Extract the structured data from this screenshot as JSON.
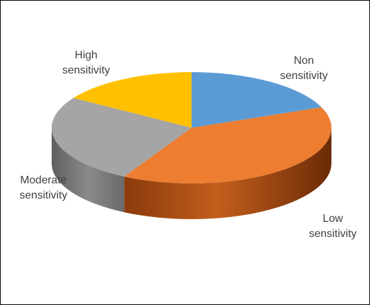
{
  "chart_data": {
    "type": "pie",
    "style": "3d-exploded-none",
    "title": "",
    "legend": "none",
    "start_angle_deg": 0,
    "slices": [
      {
        "label": [
          "Non",
          "sensitivity"
        ],
        "value": 19,
        "color": "#5B9BD5"
      },
      {
        "label": [
          "Low",
          "sensitivity"
        ],
        "value": 39,
        "color": "#ED7D31"
      },
      {
        "label": [
          "Moderate",
          "sensitivity"
        ],
        "value": 26,
        "color": "#A5A5A5"
      },
      {
        "label": [
          "High",
          "sensitivity"
        ],
        "value": 16,
        "color": "#FFC000"
      }
    ]
  }
}
